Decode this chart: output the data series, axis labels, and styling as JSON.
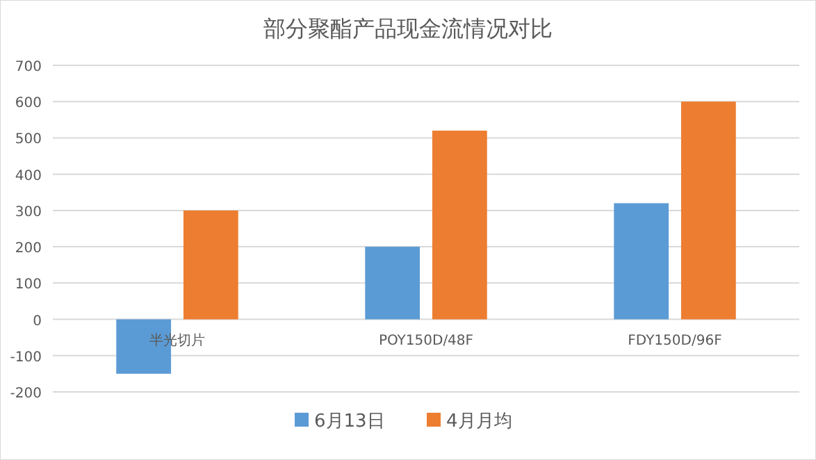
{
  "chart_data": {
    "type": "bar",
    "title": "部分聚酯产品现金流情况对比",
    "categories": [
      "半光切片",
      "POY150D/48F",
      "FDY150D/96F"
    ],
    "series": [
      {
        "name": "6月13日",
        "color": "#5b9bd5",
        "values": [
          -150,
          200,
          320
        ]
      },
      {
        "name": "4月月均",
        "color": "#ed7d31",
        "values": [
          300,
          520,
          600
        ]
      }
    ],
    "ylim": [
      -200,
      700
    ],
    "yticks": [
      -200,
      -100,
      0,
      100,
      200,
      300,
      400,
      500,
      600,
      700
    ],
    "grid": "y",
    "legend": "bottom"
  }
}
